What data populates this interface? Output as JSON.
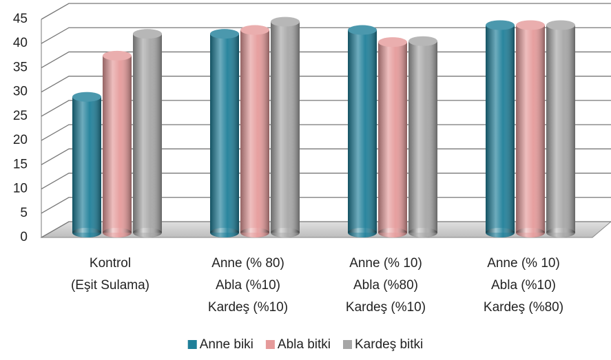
{
  "chart_data": {
    "type": "bar3d",
    "categories": [
      [
        "Kontrol",
        "(Eşit Sulama)"
      ],
      [
        "Anne (% 80)",
        "Abla (%10)",
        "Kardeş (%10)"
      ],
      [
        "Anne (% 10)",
        "Abla (%80)",
        "Kardeş (%10)"
      ],
      [
        "Anne (% 10)",
        "Abla (%10)",
        "Kardeş (%80)"
      ]
    ],
    "series": [
      {
        "name": "Anne biki",
        "color": "#1f7f99",
        "values": [
          28,
          41,
          41.8,
          42.8
        ]
      },
      {
        "name": "Abla bitki",
        "color": "#e59a9a",
        "values": [
          36.5,
          41.8,
          39.3,
          42.8
        ]
      },
      {
        "name": "Kardeş bitki",
        "color": "#a6a6a6",
        "values": [
          41,
          43.5,
          39.5,
          42.8
        ]
      }
    ],
    "ylim": [
      0,
      45
    ],
    "yticks": [
      0,
      5,
      10,
      15,
      20,
      25,
      30,
      35,
      40,
      45
    ],
    "grid": true,
    "legend": "bottom"
  }
}
